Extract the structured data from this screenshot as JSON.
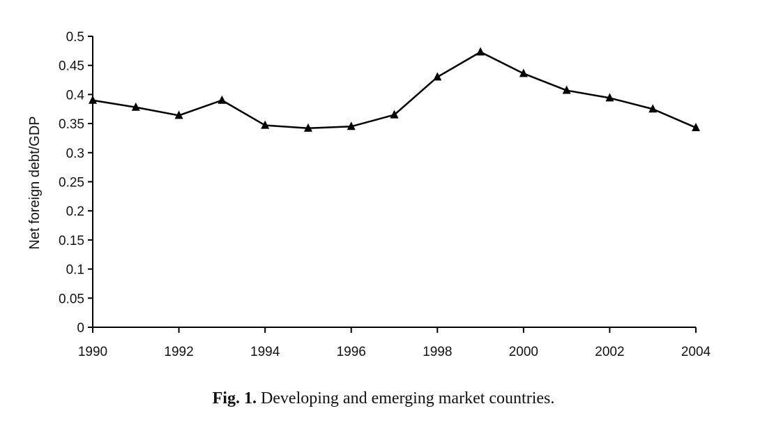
{
  "chart_data": {
    "type": "line",
    "title": "",
    "xlabel": "",
    "ylabel": "Net foreign debt/GDP",
    "x": [
      1990,
      1991,
      1992,
      1993,
      1994,
      1995,
      1996,
      1997,
      1998,
      1999,
      2000,
      2001,
      2002,
      2003,
      2004
    ],
    "series": [
      {
        "values": [
          0.39,
          0.378,
          0.364,
          0.39,
          0.347,
          0.342,
          0.345,
          0.365,
          0.43,
          0.473,
          0.436,
          0.407,
          0.394,
          0.375,
          0.343
        ],
        "marker": "triangle",
        "color": "#000000"
      }
    ],
    "xlim": [
      1990,
      2004
    ],
    "ylim": [
      0,
      0.5
    ],
    "xticks": [
      "1990",
      "1992",
      "1994",
      "1996",
      "1998",
      "2000",
      "2002",
      "2004"
    ],
    "yticks": [
      "0",
      "0.05",
      "0.1",
      "0.15",
      "0.2",
      "0.25",
      "0.3",
      "0.35",
      "0.4",
      "0.45",
      "0.5"
    ],
    "grid": false,
    "legend": "none"
  },
  "caption": {
    "label": "Fig. 1.",
    "text": "Developing and emerging market countries."
  }
}
